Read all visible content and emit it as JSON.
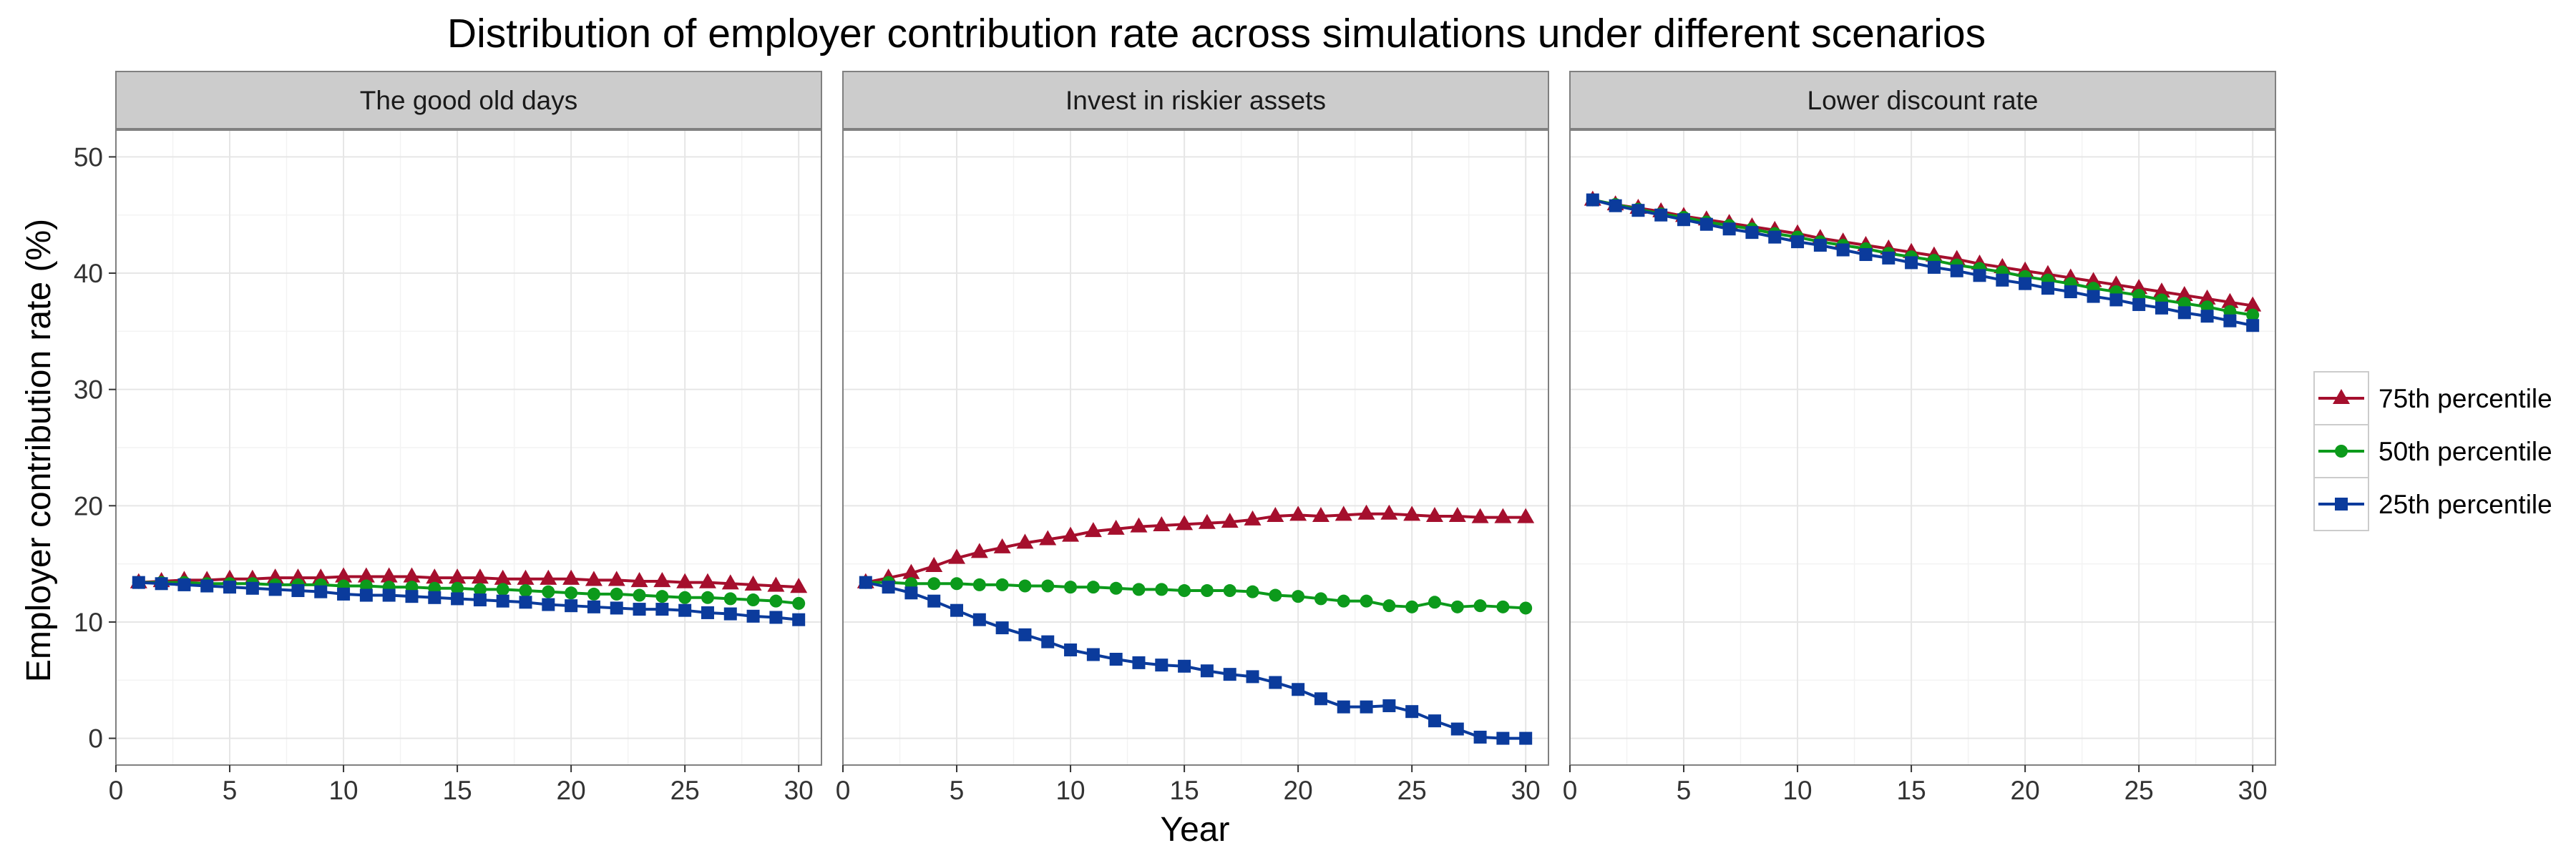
{
  "chart_data": {
    "type": "line",
    "title": "Distribution of employer contribution rate across simulations under different scenarios",
    "xlabel": "Year",
    "ylabel": "Employer contribution rate (%)",
    "xlim": [
      0,
      31
    ],
    "ylim": [
      -2.3,
      52.3
    ],
    "x_ticks": [
      0,
      5,
      10,
      15,
      20,
      25,
      30
    ],
    "y_ticks": [
      0,
      10,
      20,
      30,
      40,
      50
    ],
    "grid": true,
    "legend_position": "right",
    "legend": [
      {
        "name": "75th percentile",
        "color": "#a50f2d",
        "marker": "triangle"
      },
      {
        "name": "50th percentile",
        "color": "#0c9a1b",
        "marker": "circle"
      },
      {
        "name": "25th percentile",
        "color": "#0b3b9c",
        "marker": "square"
      }
    ],
    "x": [
      1,
      2,
      3,
      4,
      5,
      6,
      7,
      8,
      9,
      10,
      11,
      12,
      13,
      14,
      15,
      16,
      17,
      18,
      19,
      20,
      21,
      22,
      23,
      24,
      25,
      26,
      27,
      28,
      29,
      30
    ],
    "panels": [
      {
        "label": "The good old days",
        "series": [
          {
            "name": "75th percentile",
            "values": [
              13.4,
              13.5,
              13.6,
              13.6,
              13.7,
              13.7,
              13.8,
              13.8,
              13.8,
              13.9,
              13.9,
              13.9,
              13.9,
              13.8,
              13.8,
              13.8,
              13.7,
              13.7,
              13.7,
              13.7,
              13.6,
              13.6,
              13.5,
              13.5,
              13.4,
              13.4,
              13.3,
              13.2,
              13.1,
              13.0
            ]
          },
          {
            "name": "50th percentile",
            "values": [
              13.4,
              13.4,
              13.4,
              13.3,
              13.3,
              13.3,
              13.2,
              13.2,
              13.2,
              13.1,
              13.1,
              13.0,
              13.0,
              12.9,
              12.9,
              12.8,
              12.8,
              12.7,
              12.6,
              12.5,
              12.4,
              12.4,
              12.3,
              12.2,
              12.1,
              12.1,
              12.0,
              11.9,
              11.8,
              11.6
            ]
          },
          {
            "name": "25th percentile",
            "values": [
              13.4,
              13.3,
              13.2,
              13.1,
              13.0,
              12.9,
              12.8,
              12.7,
              12.6,
              12.4,
              12.3,
              12.3,
              12.2,
              12.1,
              12.0,
              11.9,
              11.8,
              11.7,
              11.5,
              11.4,
              11.3,
              11.2,
              11.1,
              11.1,
              11.0,
              10.8,
              10.7,
              10.5,
              10.4,
              10.2
            ]
          }
        ]
      },
      {
        "label": "Invest in riskier assets",
        "series": [
          {
            "name": "75th percentile",
            "values": [
              13.4,
              13.8,
              14.2,
              14.8,
              15.5,
              16.0,
              16.4,
              16.8,
              17.1,
              17.4,
              17.8,
              18.0,
              18.2,
              18.3,
              18.4,
              18.5,
              18.6,
              18.8,
              19.1,
              19.2,
              19.1,
              19.2,
              19.3,
              19.3,
              19.2,
              19.1,
              19.1,
              19.0,
              19.0,
              19.0
            ]
          },
          {
            "name": "50th percentile",
            "values": [
              13.4,
              13.4,
              13.3,
              13.3,
              13.3,
              13.2,
              13.2,
              13.1,
              13.1,
              13.0,
              13.0,
              12.9,
              12.8,
              12.8,
              12.7,
              12.7,
              12.7,
              12.6,
              12.3,
              12.2,
              12.0,
              11.8,
              11.8,
              11.4,
              11.3,
              11.7,
              11.3,
              11.4,
              11.3,
              11.2
            ]
          },
          {
            "name": "25th percentile",
            "values": [
              13.4,
              13.0,
              12.5,
              11.8,
              11.0,
              10.2,
              9.5,
              8.9,
              8.3,
              7.6,
              7.2,
              6.8,
              6.5,
              6.3,
              6.2,
              5.8,
              5.5,
              5.3,
              4.8,
              4.2,
              3.4,
              2.7,
              2.7,
              2.8,
              2.3,
              1.5,
              0.8,
              0.1,
              0.0,
              0.0
            ]
          }
        ]
      },
      {
        "label": "Lower discount rate",
        "series": [
          {
            "name": "75th percentile",
            "values": [
              46.3,
              45.9,
              45.6,
              45.3,
              44.9,
              44.6,
              44.3,
              44.0,
              43.7,
              43.4,
              43.0,
              42.7,
              42.4,
              42.1,
              41.8,
              41.5,
              41.2,
              40.8,
              40.5,
              40.2,
              39.9,
              39.6,
              39.3,
              39.0,
              38.7,
              38.4,
              38.1,
              37.8,
              37.5,
              37.2
            ]
          },
          {
            "name": "50th percentile",
            "values": [
              46.3,
              45.9,
              45.5,
              45.1,
              44.8,
              44.4,
              44.1,
              43.8,
              43.4,
              43.1,
              42.7,
              42.4,
              42.1,
              41.7,
              41.4,
              41.1,
              40.7,
              40.4,
              40.1,
              39.7,
              39.4,
              39.1,
              38.7,
              38.4,
              38.1,
              37.7,
              37.4,
              37.1,
              36.7,
              36.4
            ]
          },
          {
            "name": "25th percentile",
            "values": [
              46.3,
              45.8,
              45.4,
              45.0,
              44.6,
              44.2,
              43.8,
              43.5,
              43.1,
              42.7,
              42.4,
              42.0,
              41.6,
              41.3,
              40.9,
              40.5,
              40.2,
              39.8,
              39.4,
              39.1,
              38.7,
              38.4,
              38.0,
              37.7,
              37.3,
              37.0,
              36.6,
              36.3,
              35.9,
              35.5
            ]
          }
        ]
      }
    ]
  }
}
